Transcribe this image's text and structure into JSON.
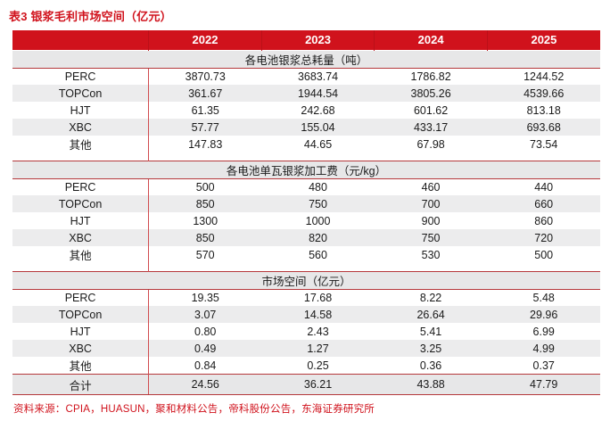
{
  "title": "表3  银浆毛利市场空间（亿元）",
  "colors": {
    "header_red": "#d0121c",
    "rule_red": "#b5383b",
    "divider_red": "#d14b4e",
    "section_band_gray": "#e7e7e8",
    "stripe_gray": "#ececed"
  },
  "table": {
    "years": [
      "2022",
      "2023",
      "2024",
      "2025"
    ],
    "sections": [
      {
        "header": "各电池银浆总耗量（吨）",
        "rows": [
          {
            "label": "PERC",
            "values": [
              "3870.73",
              "3683.74",
              "1786.82",
              "1244.52"
            ]
          },
          {
            "label": "TOPCon",
            "values": [
              "361.67",
              "1944.54",
              "3805.26",
              "4539.66"
            ]
          },
          {
            "label": "HJT",
            "values": [
              "61.35",
              "242.68",
              "601.62",
              "813.18"
            ]
          },
          {
            "label": "XBC",
            "values": [
              "57.77",
              "155.04",
              "433.17",
              "693.68"
            ]
          },
          {
            "label": "其他",
            "values": [
              "147.83",
              "44.65",
              "67.98",
              "73.54"
            ]
          }
        ]
      },
      {
        "header": "各电池单瓦银浆加工费（元/kg）",
        "rows": [
          {
            "label": "PERC",
            "values": [
              "500",
              "480",
              "460",
              "440"
            ]
          },
          {
            "label": "TOPCon",
            "values": [
              "850",
              "750",
              "700",
              "660"
            ]
          },
          {
            "label": "HJT",
            "values": [
              "1300",
              "1000",
              "900",
              "860"
            ]
          },
          {
            "label": "XBC",
            "values": [
              "850",
              "820",
              "750",
              "720"
            ]
          },
          {
            "label": "其他",
            "values": [
              "570",
              "560",
              "530",
              "500"
            ]
          }
        ]
      },
      {
        "header": "市场空间（亿元）",
        "rows": [
          {
            "label": "PERC",
            "values": [
              "19.35",
              "17.68",
              "8.22",
              "5.48"
            ]
          },
          {
            "label": "TOPCon",
            "values": [
              "3.07",
              "14.58",
              "26.64",
              "29.96"
            ]
          },
          {
            "label": "HJT",
            "values": [
              "0.80",
              "2.43",
              "5.41",
              "6.99"
            ]
          },
          {
            "label": "XBC",
            "values": [
              "0.49",
              "1.27",
              "3.25",
              "4.99"
            ]
          },
          {
            "label": "其他",
            "values": [
              "0.84",
              "0.25",
              "0.36",
              "0.37"
            ]
          }
        ]
      }
    ],
    "total": {
      "label": "合计",
      "values": [
        "24.56",
        "36.21",
        "43.88",
        "47.79"
      ]
    }
  },
  "source_note": "资料来源：CPIA，HUASUN，聚和材料公告，帝科股份公告，东海证券研究所"
}
